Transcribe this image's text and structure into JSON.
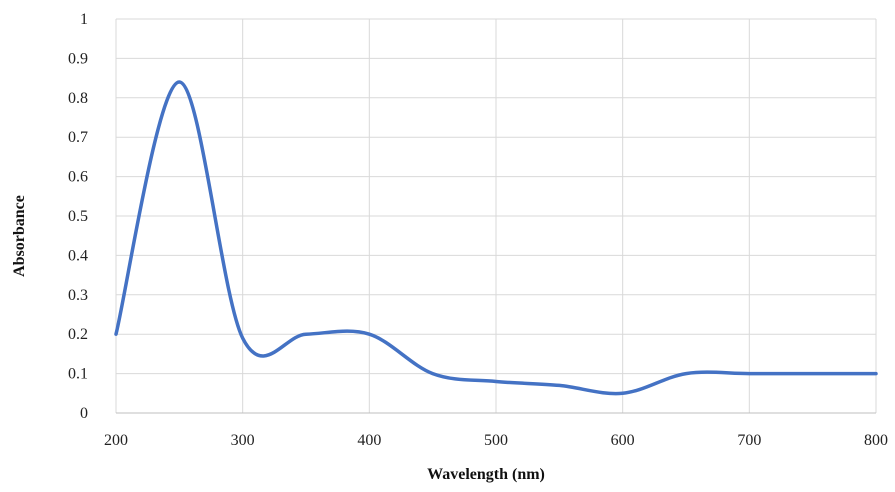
{
  "chart_data": {
    "type": "line",
    "title": "",
    "xlabel": "Wavelength (nm)",
    "ylabel": "Absorbance",
    "xlim": [
      200,
      800
    ],
    "ylim": [
      0,
      1
    ],
    "x_ticks": [
      200,
      300,
      400,
      500,
      600,
      700,
      800
    ],
    "x_tick_labels": [
      "200",
      "300",
      "400",
      "500",
      "600",
      "700",
      "800"
    ],
    "y_ticks": [
      0,
      0.1,
      0.2,
      0.3,
      0.4,
      0.5,
      0.6,
      0.7,
      0.8,
      0.9,
      1
    ],
    "y_tick_labels": [
      "0",
      "0.1",
      "0.2",
      "0.3",
      "0.4",
      "0.5",
      "0.6",
      "0.7",
      "0.8",
      "0.9",
      "1"
    ],
    "grid": true,
    "legend": "none",
    "series": [
      {
        "color": "#4472C4",
        "x": [
          200,
          250,
          300,
          350,
          400,
          450,
          500,
          550,
          600,
          650,
          700,
          750,
          800
        ],
        "y": [
          0.2,
          0.84,
          0.19,
          0.2,
          0.2,
          0.1,
          0.08,
          0.07,
          0.05,
          0.1,
          0.1,
          0.1,
          0.1
        ]
      }
    ]
  },
  "colors": {
    "line": "#4472C4",
    "grid": "#d9d9d9",
    "axis": "#bfbfbf"
  }
}
